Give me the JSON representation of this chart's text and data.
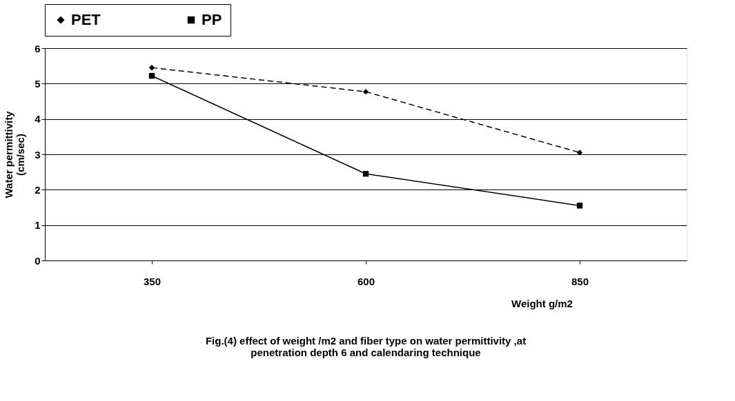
{
  "chart_data": {
    "type": "line",
    "title": "Fig.(4) effect of weight /m2 and fiber type on water permittivity ,at penetration depth 6 and calendaring technique",
    "xlabel": "Weight g/m2",
    "ylabel": "Water permittivity (cm/sec)",
    "categories": [
      "350",
      "600",
      "850"
    ],
    "series": [
      {
        "name": "PET",
        "color": "#000000",
        "values": [
          5.45,
          4.77,
          3.05
        ],
        "marker": "diamond",
        "line_style": "dashed"
      },
      {
        "name": "PP",
        "color": "#000000",
        "values": [
          5.22,
          2.45,
          1.55
        ],
        "marker": "square",
        "line_style": "solid"
      }
    ],
    "ylim": [
      0,
      6
    ],
    "yticks": [
      0,
      1,
      2,
      3,
      4,
      5,
      6
    ],
    "grid": "y",
    "legend": "top"
  }
}
